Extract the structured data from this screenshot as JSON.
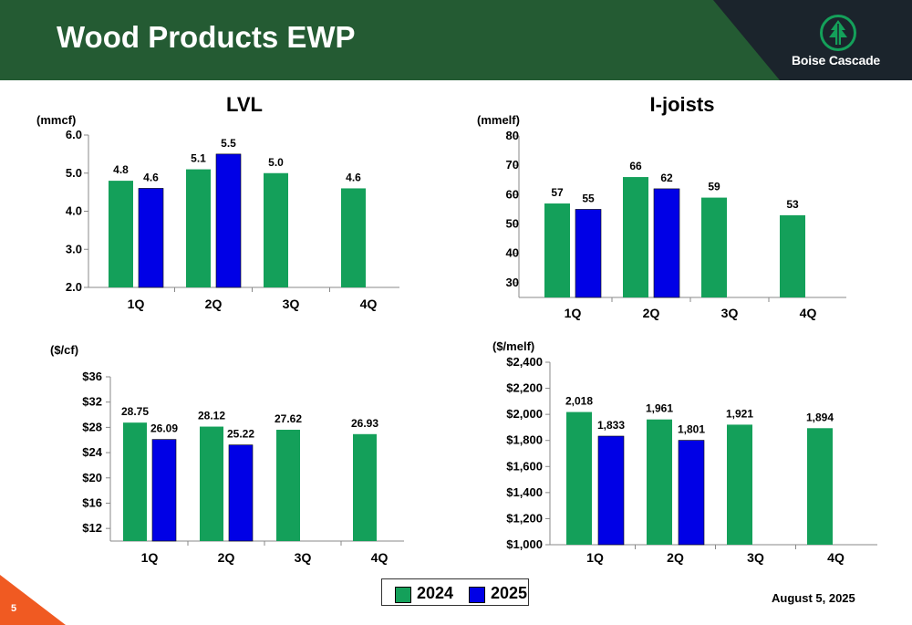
{
  "slide": {
    "title": "Wood Products EWP",
    "brand": "Boise Cascade",
    "date": "August 5, 2025",
    "page_number": "5"
  },
  "colors": {
    "header": "#245b33",
    "header_dark": "#1b242c",
    "series_2024": "#14a05a",
    "series_2025": "#0000e6",
    "page_accent": "#f05a22"
  },
  "legend": {
    "items": [
      "2024",
      "2025"
    ]
  },
  "chart_data": [
    {
      "type": "bar",
      "title": "LVL",
      "ylabel": "(mmcf)",
      "categories": [
        "1Q",
        "2Q",
        "3Q",
        "4Q"
      ],
      "ylim": [
        2.0,
        6.0
      ],
      "yticks": [
        "2.0",
        "3.0",
        "4.0",
        "5.0",
        "6.0"
      ],
      "series": [
        {
          "name": "2024",
          "values": [
            4.8,
            5.1,
            5.0,
            4.6
          ],
          "labels": [
            "4.8",
            "5.1",
            "5.0",
            "4.6"
          ]
        },
        {
          "name": "2025",
          "values": [
            4.6,
            5.5,
            null,
            null
          ],
          "labels": [
            "4.6",
            "5.5",
            "",
            ""
          ]
        }
      ]
    },
    {
      "type": "bar",
      "title": "I-joists",
      "ylabel": "(mmelf)",
      "categories": [
        "1Q",
        "2Q",
        "3Q",
        "4Q"
      ],
      "ylim": [
        25,
        80
      ],
      "yticks": [
        "30",
        "40",
        "50",
        "60",
        "70",
        "80"
      ],
      "series": [
        {
          "name": "2024",
          "values": [
            57,
            66,
            59,
            53
          ],
          "labels": [
            "57",
            "66",
            "59",
            "53"
          ]
        },
        {
          "name": "2025",
          "values": [
            55,
            62,
            null,
            null
          ],
          "labels": [
            "55",
            "62",
            "",
            ""
          ]
        }
      ]
    },
    {
      "type": "bar",
      "title": "",
      "ylabel": "($/cf)",
      "categories": [
        "1Q",
        "2Q",
        "3Q",
        "4Q"
      ],
      "ylim": [
        10,
        36
      ],
      "yticks": [
        "$12",
        "$16",
        "$20",
        "$24",
        "$28",
        "$32",
        "$36"
      ],
      "series": [
        {
          "name": "2024",
          "values": [
            28.75,
            28.12,
            27.62,
            26.93
          ],
          "labels": [
            "28.75",
            "28.12",
            "27.62",
            "26.93"
          ]
        },
        {
          "name": "2025",
          "values": [
            26.09,
            25.22,
            null,
            null
          ],
          "labels": [
            "26.09",
            "25.22",
            "",
            ""
          ]
        }
      ]
    },
    {
      "type": "bar",
      "title": "",
      "ylabel": "($/melf)",
      "categories": [
        "1Q",
        "2Q",
        "3Q",
        "4Q"
      ],
      "ylim": [
        1000,
        2400
      ],
      "yticks": [
        "$1,000",
        "$1,200",
        "$1,400",
        "$1,600",
        "$1,800",
        "$2,000",
        "$2,200",
        "$2,400"
      ],
      "series": [
        {
          "name": "2024",
          "values": [
            2018,
            1961,
            1921,
            1894
          ],
          "labels": [
            "2,018",
            "1,961",
            "1,921",
            "1,894"
          ]
        },
        {
          "name": "2025",
          "values": [
            1833,
            1801,
            null,
            null
          ],
          "labels": [
            "1,833",
            "1,801",
            "",
            ""
          ]
        }
      ]
    }
  ]
}
